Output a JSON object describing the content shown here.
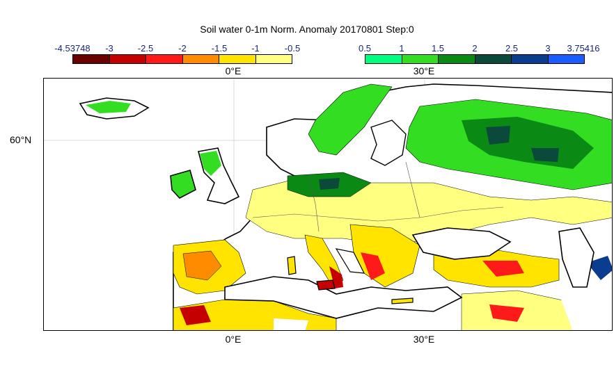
{
  "title": "Soil water 0-1m Norm. Anomaly 20170801 Step:0",
  "colorbar_negative": {
    "ticks": [
      "-4.53748",
      "-3",
      "-2.5",
      "-2",
      "-1.5",
      "-1",
      "-0.5"
    ],
    "colors": [
      "#6b0000",
      "#c40000",
      "#ff1a1a",
      "#ff8c00",
      "#ffe400",
      "#ffff80"
    ]
  },
  "colorbar_positive": {
    "ticks": [
      "0.5",
      "1",
      "1.5",
      "2",
      "2.5",
      "3",
      "3.75416"
    ],
    "colors": [
      "#00ff80",
      "#33dd22",
      "#0a8a14",
      "#0b4a3a",
      "#0a3d8f",
      "#1a5cff"
    ]
  },
  "top_lon_labels": [
    "0°E",
    "30°E"
  ],
  "bottom_lon_labels": [
    "0°E",
    "30°E"
  ],
  "lat_labels": [
    "60°N"
  ]
}
